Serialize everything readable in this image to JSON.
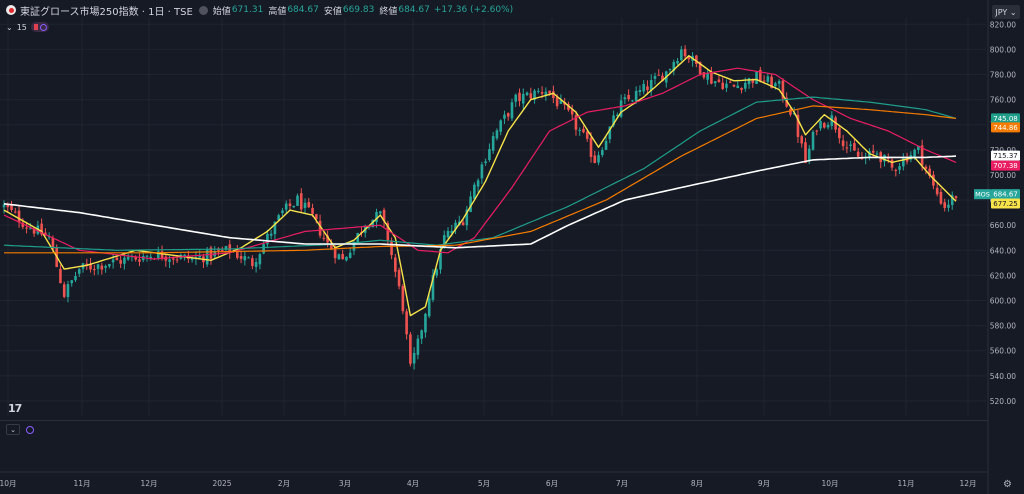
{
  "header": {
    "symbol": "東証グロース市場250指数 · 1日 · TSE",
    "ohlc": [
      {
        "label": "始値",
        "value": "671.31"
      },
      {
        "label": "高値",
        "value": "684.67"
      },
      {
        "label": "安値",
        "value": "669.83"
      },
      {
        "label": "終値",
        "value": "684.67"
      }
    ],
    "change": "+17.36 (+2.60%)",
    "currency": "JPY"
  },
  "indicator_bar": {
    "count": "15"
  },
  "colors": {
    "up": "#26a69a",
    "down": "#ef5350",
    "ma1": "#f7e34a",
    "ma2": "#e91e63",
    "ma3": "#1f9e8b",
    "ma4": "#f57c00",
    "ma5": "#ffffff"
  },
  "chart_data": {
    "type": "line",
    "title": "",
    "xlabel": "",
    "ylabel": "",
    "ylim": [
      508,
      825
    ],
    "y_ticks": [
      "820.00",
      "800.00",
      "780.00",
      "760.00",
      "740.00",
      "720.00",
      "700.00",
      "680.00",
      "660.00",
      "640.00",
      "620.00",
      "600.00",
      "580.00",
      "560.00",
      "540.00",
      "520.00"
    ],
    "x_ticks": [
      "10月",
      "11月",
      "12月",
      "2025",
      "2月",
      "3月",
      "4月",
      "5月",
      "6月",
      "7月",
      "8月",
      "9月",
      "10月",
      "11月",
      "12月"
    ],
    "price_ohlc_keypoints": [
      [
        0,
        675
      ],
      [
        6,
        660
      ],
      [
        12,
        650
      ],
      [
        16,
        605
      ],
      [
        20,
        625
      ],
      [
        28,
        630
      ],
      [
        40,
        637
      ],
      [
        50,
        633
      ],
      [
        60,
        640
      ],
      [
        66,
        630
      ],
      [
        70,
        650
      ],
      [
        74,
        670
      ],
      [
        78,
        680
      ],
      [
        82,
        666
      ],
      [
        86,
        645
      ],
      [
        90,
        632
      ],
      [
        96,
        662
      ],
      [
        100,
        668
      ],
      [
        102,
        650
      ],
      [
        106,
        595
      ],
      [
        108,
        545
      ],
      [
        110,
        565
      ],
      [
        113,
        605
      ],
      [
        117,
        650
      ],
      [
        122,
        665
      ],
      [
        126,
        700
      ],
      [
        130,
        730
      ],
      [
        136,
        760
      ],
      [
        144,
        768
      ],
      [
        150,
        748
      ],
      [
        154,
        730
      ],
      [
        157,
        712
      ],
      [
        160,
        730
      ],
      [
        164,
        756
      ],
      [
        170,
        768
      ],
      [
        176,
        782
      ],
      [
        180,
        800
      ],
      [
        184,
        788
      ],
      [
        188,
        776
      ],
      [
        194,
        770
      ],
      [
        200,
        778
      ],
      [
        206,
        770
      ],
      [
        210,
        745
      ],
      [
        213,
        710
      ],
      [
        216,
        740
      ],
      [
        220,
        745
      ],
      [
        224,
        722
      ],
      [
        228,
        712
      ],
      [
        232,
        718
      ],
      [
        236,
        705
      ],
      [
        240,
        715
      ],
      [
        243,
        720
      ],
      [
        247,
        690
      ],
      [
        250,
        675
      ],
      [
        253,
        684
      ]
    ],
    "series": [
      {
        "key": "ma1",
        "values": [
          [
            0,
            672
          ],
          [
            10,
            655
          ],
          [
            16,
            625
          ],
          [
            22,
            628
          ],
          [
            35,
            640
          ],
          [
            55,
            632
          ],
          [
            63,
            642
          ],
          [
            70,
            655
          ],
          [
            76,
            672
          ],
          [
            82,
            668
          ],
          [
            88,
            642
          ],
          [
            93,
            648
          ],
          [
            100,
            668
          ],
          [
            104,
            650
          ],
          [
            108,
            588
          ],
          [
            112,
            595
          ],
          [
            116,
            640
          ],
          [
            122,
            665
          ],
          [
            128,
            695
          ],
          [
            134,
            735
          ],
          [
            140,
            760
          ],
          [
            146,
            765
          ],
          [
            152,
            750
          ],
          [
            158,
            722
          ],
          [
            164,
            750
          ],
          [
            170,
            762
          ],
          [
            176,
            778
          ],
          [
            182,
            795
          ],
          [
            188,
            782
          ],
          [
            194,
            775
          ],
          [
            200,
            776
          ],
          [
            206,
            768
          ],
          [
            210,
            750
          ],
          [
            213,
            732
          ],
          [
            218,
            748
          ],
          [
            224,
            735
          ],
          [
            230,
            717
          ],
          [
            236,
            710
          ],
          [
            242,
            714
          ],
          [
            246,
            700
          ],
          [
            250,
            688
          ],
          [
            253,
            679
          ]
        ]
      },
      {
        "key": "ma2",
        "values": [
          [
            0,
            668
          ],
          [
            20,
            640
          ],
          [
            40,
            633
          ],
          [
            60,
            638
          ],
          [
            80,
            655
          ],
          [
            100,
            660
          ],
          [
            110,
            640
          ],
          [
            118,
            638
          ],
          [
            125,
            650
          ],
          [
            135,
            690
          ],
          [
            145,
            735
          ],
          [
            155,
            750
          ],
          [
            165,
            755
          ],
          [
            175,
            765
          ],
          [
            185,
            780
          ],
          [
            195,
            785
          ],
          [
            205,
            780
          ],
          [
            215,
            760
          ],
          [
            225,
            745
          ],
          [
            235,
            735
          ],
          [
            245,
            720
          ],
          [
            253,
            710
          ]
        ]
      },
      {
        "key": "ma3",
        "values": [
          [
            0,
            644
          ],
          [
            30,
            640
          ],
          [
            60,
            641
          ],
          [
            90,
            645
          ],
          [
            100,
            648
          ],
          [
            115,
            644
          ],
          [
            130,
            650
          ],
          [
            150,
            675
          ],
          [
            170,
            705
          ],
          [
            185,
            735
          ],
          [
            200,
            758
          ],
          [
            215,
            762
          ],
          [
            230,
            758
          ],
          [
            245,
            752
          ],
          [
            253,
            745
          ]
        ]
      },
      {
        "key": "ma4",
        "values": [
          [
            0,
            638
          ],
          [
            40,
            638
          ],
          [
            80,
            640
          ],
          [
            100,
            643
          ],
          [
            120,
            644
          ],
          [
            140,
            655
          ],
          [
            160,
            680
          ],
          [
            180,
            715
          ],
          [
            200,
            745
          ],
          [
            215,
            755
          ],
          [
            230,
            752
          ],
          [
            245,
            748
          ],
          [
            253,
            745
          ]
        ]
      },
      {
        "key": "ma5",
        "values": [
          [
            0,
            677
          ],
          [
            20,
            670
          ],
          [
            40,
            660
          ],
          [
            60,
            650
          ],
          [
            80,
            645
          ],
          [
            100,
            645
          ],
          [
            120,
            642
          ],
          [
            140,
            645
          ],
          [
            150,
            660
          ],
          [
            165,
            680
          ],
          [
            180,
            690
          ],
          [
            200,
            703
          ],
          [
            215,
            712
          ],
          [
            230,
            714
          ],
          [
            245,
            714
          ],
          [
            253,
            715
          ]
        ]
      }
    ],
    "price_labels": [
      {
        "text": "745.08",
        "color": "#1f9e8b",
        "value": 745.08
      },
      {
        "text": "744.86",
        "color": "#f57c00",
        "value": 744.86
      },
      {
        "text": "715.37",
        "color": "#ffffff",
        "value": 715.37
      },
      {
        "text": "707.38",
        "color": "#e91e63",
        "value": 707.38
      },
      {
        "text": "684.67",
        "color": "#26a69a",
        "value": 684.67,
        "prefix": "MOS"
      },
      {
        "text": "677.25",
        "color": "#f7e34a",
        "value": 677.25
      }
    ]
  }
}
